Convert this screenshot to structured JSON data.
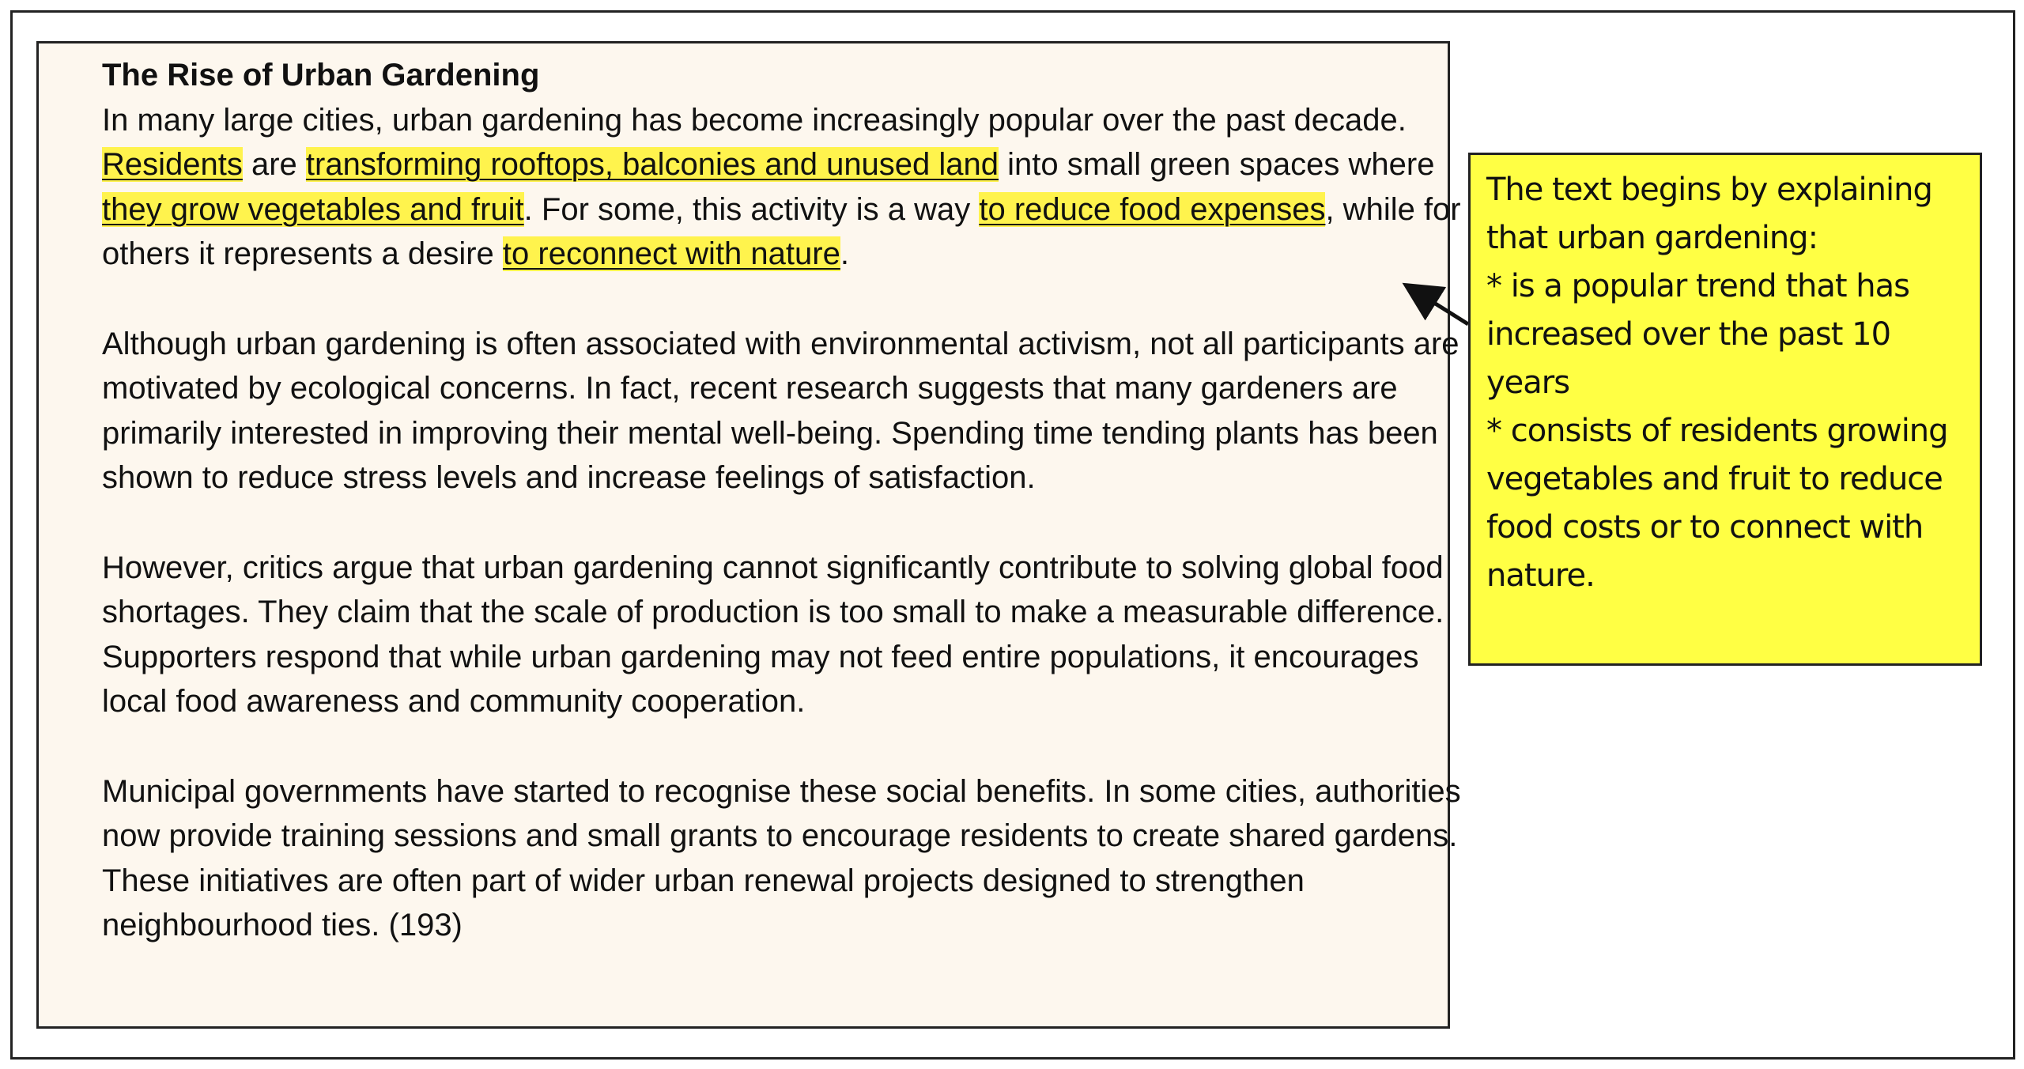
{
  "document": {
    "title": "The Rise of Urban Gardening",
    "paragraphs": [
      {
        "segments": [
          {
            "text": "In many large cities, urban gardening has become increasingly popular over the past decade. ",
            "highlight": false
          },
          {
            "text": "Residents",
            "highlight": true
          },
          {
            "text": " are ",
            "highlight": false
          },
          {
            "text": "transforming rooftops, balconies and unused land",
            "highlight": true
          },
          {
            "text": " into small green spaces where ",
            "highlight": false
          },
          {
            "text": "they grow vegetables and fruit",
            "highlight": true
          },
          {
            "text": ". For some, this activity is a way ",
            "highlight": false
          },
          {
            "text": "to reduce food expenses",
            "highlight": true
          },
          {
            "text": ", while for others it represents a desire ",
            "highlight": false
          },
          {
            "text": "to reconnect with nature",
            "highlight": true
          },
          {
            "text": ".",
            "highlight": false
          }
        ]
      },
      {
        "segments": [
          {
            "text": "Although urban gardening is often associated with environmental activism, not all participants are motivated by ecological concerns. In fact, recent research suggests that many gardeners are primarily interested in improving their mental well-being. Spending time tending plants has been shown to reduce stress levels and increase feelings of satisfaction.",
            "highlight": false
          }
        ]
      },
      {
        "segments": [
          {
            "text": "However, critics argue that urban gardening cannot significantly contribute to solving global food shortages. They claim that the scale of production is too small to make a measurable difference. Supporters respond that while urban gardening may not feed entire populations, it encourages local food awareness and community cooperation.",
            "highlight": false
          }
        ]
      },
      {
        "segments": [
          {
            "text": "Municipal governments have started to recognise these social benefits. In some cities, authorities now provide training sessions and small grants to encourage residents to create shared gardens. These initiatives are often part of wider urban renewal projects designed to strengthen neighbourhood ties. (193)",
            "highlight": false
          }
        ]
      }
    ],
    "note": {
      "lines": [
        "The text begins by explaining that urban gardening:",
        "* is a popular trend that has increased over the past 10 years",
        "* consists of residents growing vegetables and fruit to reduce food costs or to connect with nature."
      ]
    }
  }
}
